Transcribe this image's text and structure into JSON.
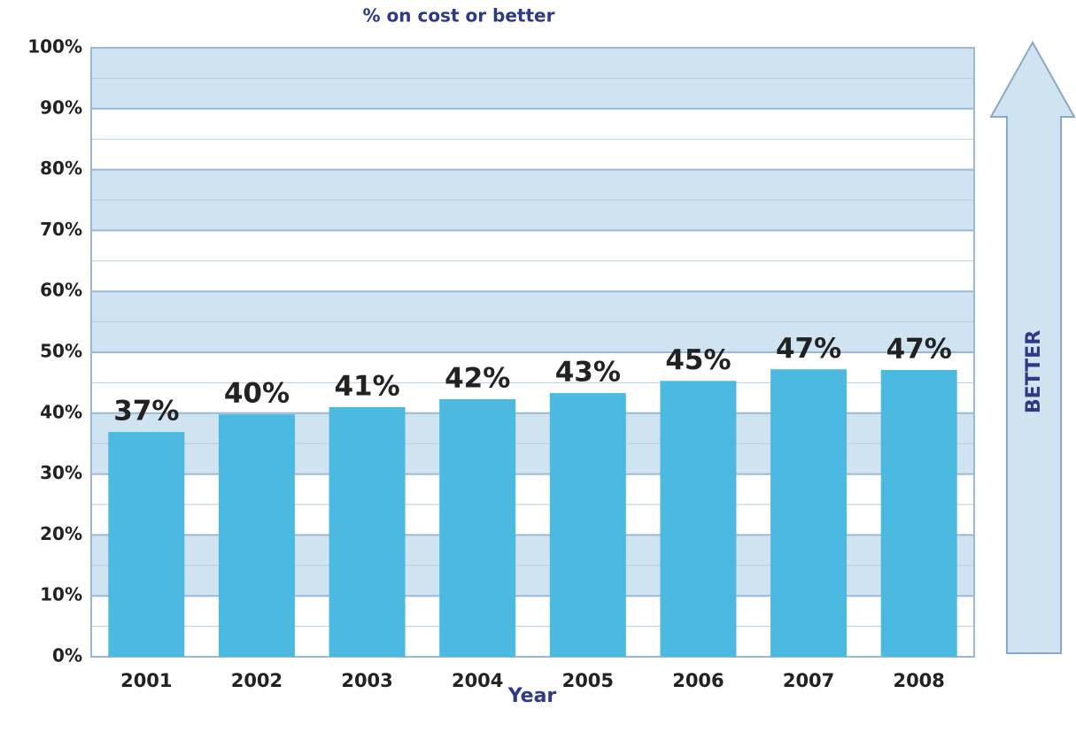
{
  "chart_data": {
    "type": "bar",
    "title": "% on cost or better",
    "x_label": "Year",
    "annotation": "BETTER",
    "categories": [
      "2001",
      "2002",
      "2003",
      "2004",
      "2005",
      "2006",
      "2007",
      "2008"
    ],
    "values": [
      36.9,
      39.8,
      41.0,
      42.3,
      43.3,
      45.3,
      47.2,
      47.1
    ],
    "value_labels": [
      "37%",
      "40%",
      "41%",
      "42%",
      "43%",
      "45%",
      "47%",
      "47%"
    ],
    "color": "#4cb9e1",
    "band_color": "#cfe4f0",
    "ylim": [
      0,
      100
    ],
    "yticks": [
      {
        "value": 0,
        "label": "0%"
      },
      {
        "value": 10,
        "label": "10%"
      },
      {
        "value": 20,
        "label": "20%"
      },
      {
        "value": 30,
        "label": "30%"
      },
      {
        "value": 40,
        "label": "40%"
      },
      {
        "value": 50,
        "label": "50%"
      },
      {
        "value": 60,
        "label": "60%"
      },
      {
        "value": 70,
        "label": "70%"
      },
      {
        "value": 80,
        "label": "80%"
      },
      {
        "value": 90,
        "label": "90%"
      },
      {
        "value": 100,
        "label": "100%"
      }
    ],
    "grid": true
  }
}
